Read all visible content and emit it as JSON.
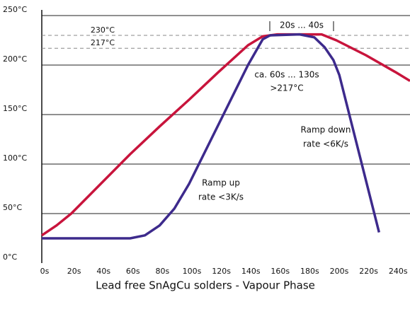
{
  "chart_data": {
    "type": "line",
    "title": "Lead free SnAgCu solders - Vapour Phase",
    "xlim": [
      0,
      250
    ],
    "ylim": [
      0,
      250
    ],
    "xticks": [
      {
        "value": 0,
        "label": "0s"
      },
      {
        "value": 20,
        "label": "20s"
      },
      {
        "value": 40,
        "label": "40s"
      },
      {
        "value": 60,
        "label": "60s"
      },
      {
        "value": 80,
        "label": "80s"
      },
      {
        "value": 100,
        "label": "100s"
      },
      {
        "value": 120,
        "label": "120s"
      },
      {
        "value": 140,
        "label": "140s"
      },
      {
        "value": 160,
        "label": "160s"
      },
      {
        "value": 180,
        "label": "180s"
      },
      {
        "value": 200,
        "label": "200s"
      },
      {
        "value": 220,
        "label": "220s"
      },
      {
        "value": 240,
        "label": "240s"
      }
    ],
    "yticks": [
      {
        "value": 0,
        "label": "0°C"
      },
      {
        "value": 50,
        "label": "50°C"
      },
      {
        "value": 100,
        "label": "100°C"
      },
      {
        "value": 150,
        "label": "150°C"
      },
      {
        "value": 200,
        "label": "200°C"
      },
      {
        "value": 250,
        "label": "250°C"
      }
    ],
    "grid": true,
    "reference_lines": [
      {
        "value": 230,
        "label": "230°C"
      },
      {
        "value": 217,
        "label": "217°C"
      }
    ],
    "series": [
      {
        "color": "#c8143c",
        "x": [
          0,
          10,
          20,
          40,
          60,
          80,
          100,
          120,
          140,
          150,
          160,
          190,
          200,
          220,
          240,
          250
        ],
        "values": [
          28,
          38,
          50,
          80,
          110,
          138,
          165,
          193,
          220,
          229,
          231,
          231,
          225,
          210,
          193,
          184
        ]
      },
      {
        "color": "#3d2a8c",
        "x": [
          0,
          60,
          70,
          80,
          90,
          100,
          120,
          140,
          150,
          155,
          175,
          185,
          192,
          198,
          202,
          229
        ],
        "values": [
          25,
          25,
          28,
          38,
          55,
          80,
          140,
          200,
          226,
          230,
          231,
          228,
          218,
          205,
          190,
          31
        ]
      }
    ],
    "annotations": [
      "20s ... 40s",
      "ca. 60s ... 130s",
      ">217°C",
      "Ramp down",
      "rate <6K/s",
      "Ramp up",
      "rate <3K/s"
    ]
  }
}
